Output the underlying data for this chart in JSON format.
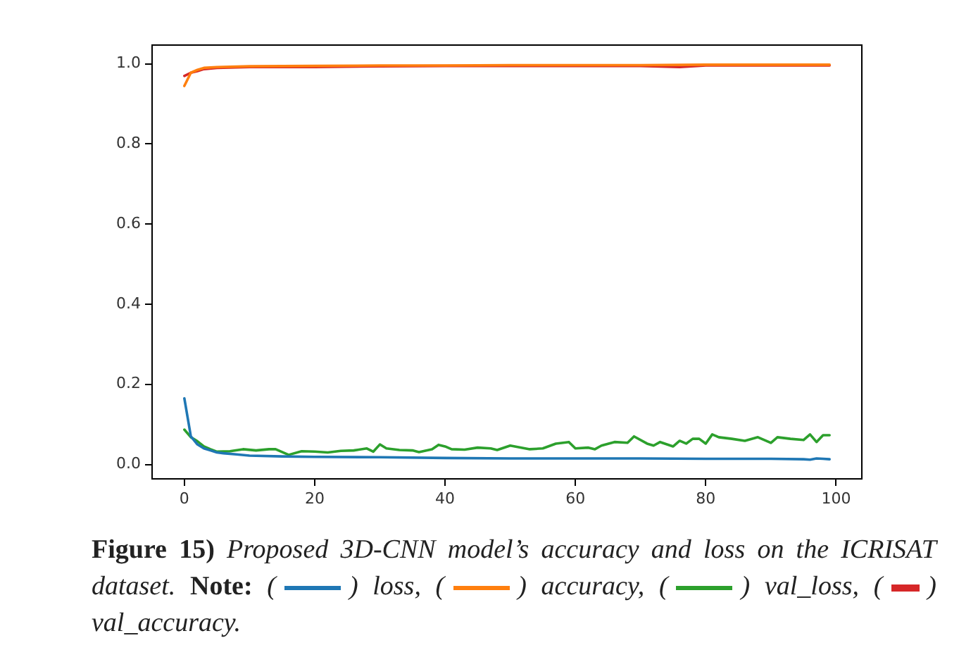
{
  "chart_data": {
    "type": "line",
    "xlim": [
      -4.95,
      103.95
    ],
    "xticks": [
      0,
      20,
      40,
      60,
      80,
      100
    ],
    "ylim": [
      -0.036,
      1.047
    ],
    "yticks": [
      {
        "value": 0,
        "label": "0.0"
      },
      {
        "value": 0.2,
        "label": "0.2"
      },
      {
        "value": 0.4,
        "label": "0.4"
      },
      {
        "value": 0.6,
        "label": "0.6"
      },
      {
        "value": 0.8,
        "label": "0.8"
      },
      {
        "value": 1,
        "label": "1.0"
      }
    ],
    "grid": false,
    "marker": "none",
    "line_style": "solid",
    "annotations": [
      "Figure 15)",
      "Proposed 3D-CNN model’s accuracy and loss on the ICRISAT dataset.",
      "Note:",
      "(",
      ") loss, (",
      ") accuracy, (",
      ") val_loss, (",
      ") val_accuracy."
    ],
    "series": [
      {
        "color": "#1f77b4",
        "x": [
          0,
          1,
          2,
          3,
          4,
          5,
          6,
          8,
          10,
          15,
          20,
          30,
          40,
          50,
          60,
          70,
          80,
          90,
          95,
          96,
          97,
          98,
          99
        ],
        "values": [
          0.165,
          0.07,
          0.05,
          0.04,
          0.035,
          0.03,
          0.028,
          0.025,
          0.022,
          0.02,
          0.019,
          0.018,
          0.016,
          0.015,
          0.015,
          0.015,
          0.014,
          0.014,
          0.013,
          0.012,
          0.015,
          0.014,
          0.013
        ]
      },
      {
        "color": "#ff7f0e",
        "x": [
          0,
          1,
          2,
          3,
          5,
          10,
          20,
          30,
          40,
          50,
          60,
          70,
          80,
          90,
          99
        ],
        "values": [
          0.945,
          0.978,
          0.985,
          0.99,
          0.992,
          0.994,
          0.995,
          0.996,
          0.996,
          0.997,
          0.997,
          0.997,
          0.998,
          0.998,
          0.998
        ]
      },
      {
        "color": "#2ca02c",
        "x": [
          0,
          1,
          2,
          3,
          4,
          5,
          7,
          9,
          11,
          13,
          14,
          16,
          18,
          20,
          22,
          24,
          26,
          28,
          29,
          30,
          31,
          33,
          35,
          36,
          38,
          39,
          40,
          41,
          43,
          45,
          47,
          48,
          50,
          53,
          55,
          57,
          59,
          60,
          62,
          63,
          64,
          66,
          68,
          69,
          71,
          72,
          73,
          75,
          76,
          77,
          78,
          79,
          80,
          81,
          82,
          84,
          86,
          88,
          90,
          91,
          93,
          95,
          96,
          97,
          98,
          99
        ],
        "values": [
          0.087,
          0.068,
          0.058,
          0.045,
          0.038,
          0.032,
          0.033,
          0.038,
          0.035,
          0.038,
          0.038,
          0.024,
          0.033,
          0.032,
          0.03,
          0.034,
          0.035,
          0.04,
          0.032,
          0.05,
          0.04,
          0.036,
          0.035,
          0.031,
          0.038,
          0.049,
          0.045,
          0.038,
          0.037,
          0.042,
          0.04,
          0.036,
          0.047,
          0.038,
          0.04,
          0.052,
          0.056,
          0.04,
          0.042,
          0.038,
          0.047,
          0.056,
          0.054,
          0.07,
          0.052,
          0.047,
          0.056,
          0.045,
          0.059,
          0.052,
          0.064,
          0.064,
          0.052,
          0.075,
          0.068,
          0.064,
          0.059,
          0.068,
          0.054,
          0.068,
          0.064,
          0.061,
          0.075,
          0.056,
          0.073,
          0.073
        ]
      },
      {
        "color": "#d62728",
        "x": [
          0,
          1,
          2,
          3,
          5,
          10,
          20,
          30,
          40,
          50,
          60,
          70,
          76,
          80,
          90,
          99
        ],
        "values": [
          0.97,
          0.978,
          0.982,
          0.987,
          0.99,
          0.992,
          0.992,
          0.994,
          0.995,
          0.995,
          0.995,
          0.995,
          0.992,
          0.996,
          0.996,
          0.996
        ]
      }
    ]
  }
}
